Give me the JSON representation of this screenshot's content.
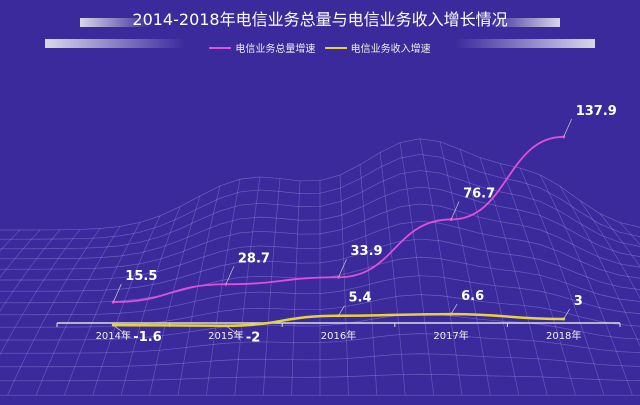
{
  "chart_data": {
    "type": "line",
    "title": "2014-2018年电信业务总量与电信业务收入增长情况",
    "categories": [
      "2014年",
      "2015年",
      "2016年",
      "2017年",
      "2018年"
    ],
    "series": [
      {
        "name": "电信业务总量增速",
        "values": [
          15.5,
          28.7,
          33.9,
          76.7,
          137.9
        ],
        "color": "#e04fd8"
      },
      {
        "name": "电信业务收入增速",
        "values": [
          -1.6,
          -2,
          5.4,
          6.6,
          3
        ],
        "color": "#e8d23a"
      }
    ],
    "grid": false,
    "legend": "top",
    "background": "#3b2a9c"
  }
}
